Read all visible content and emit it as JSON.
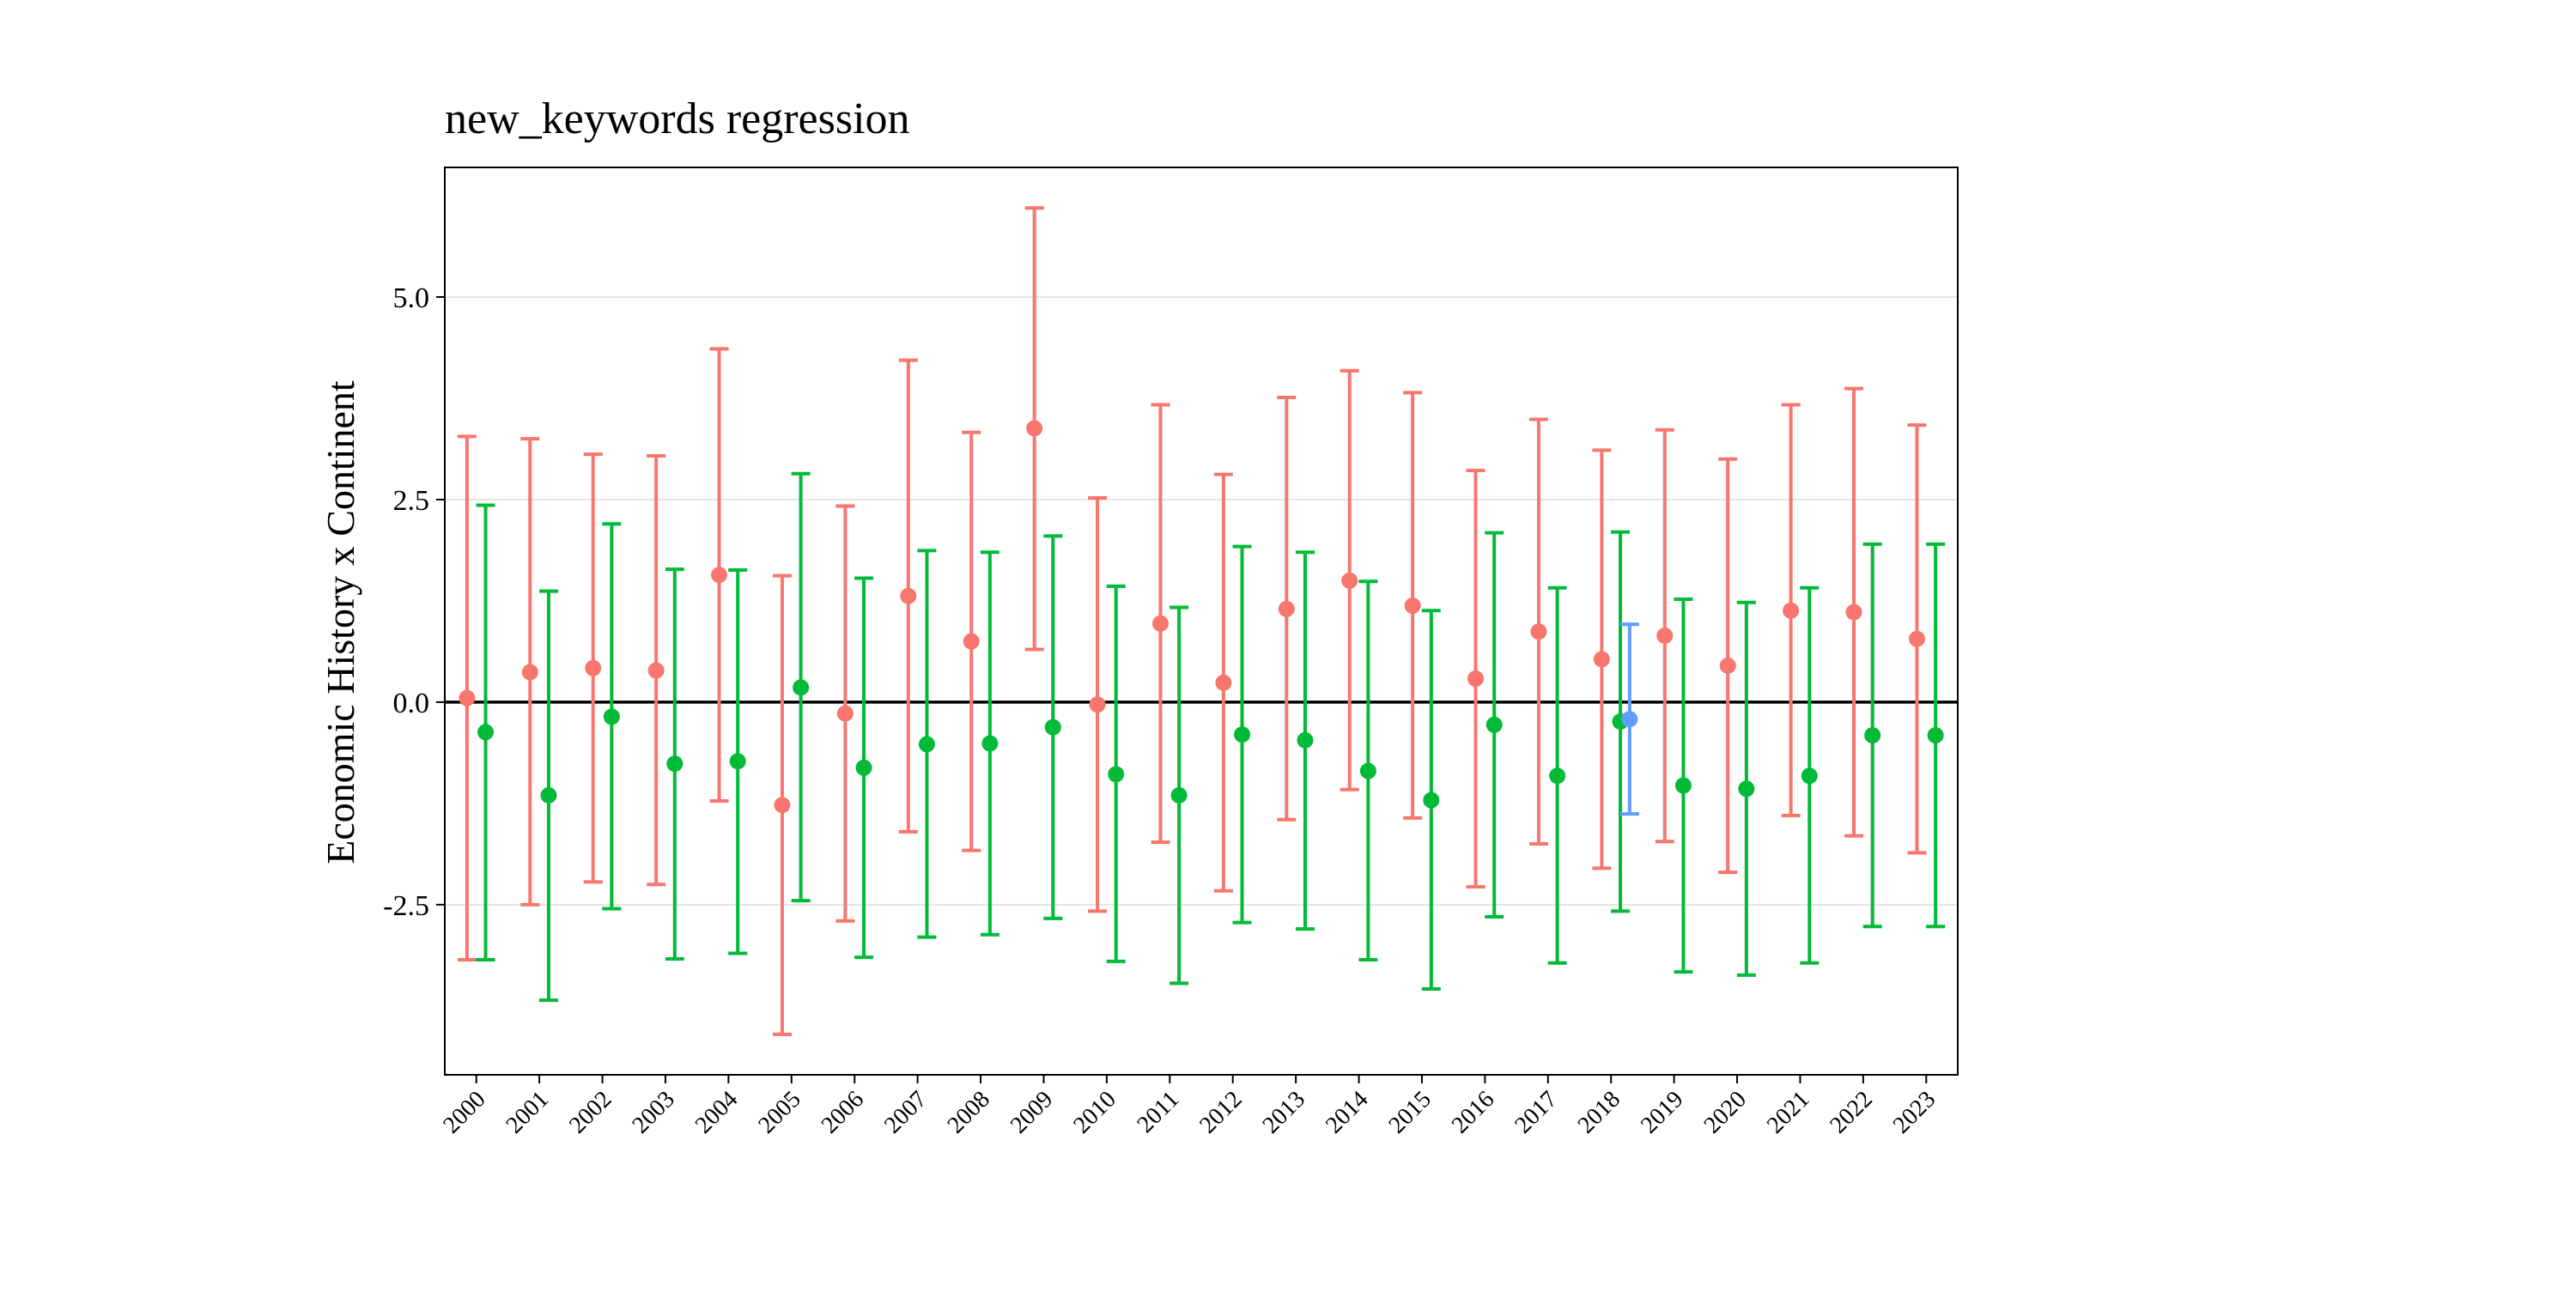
{
  "chart_data": {
    "type": "errorbar",
    "title": "new_keywords regression",
    "xlabel": "",
    "ylabel": "Economic History x Continent",
    "ylim": [
      -4.6,
      6.6
    ],
    "yticks": [
      -2.5,
      0.0,
      2.5,
      5.0
    ],
    "ytick_labels": [
      "-2.5",
      "0.0",
      "2.5",
      "5.0"
    ],
    "hline": 0,
    "grid": "horizontal major",
    "legend": "none",
    "categories": [
      "2000",
      "2001",
      "2002",
      "2003",
      "2004",
      "2005",
      "2006",
      "2007",
      "2008",
      "2009",
      "2010",
      "2011",
      "2012",
      "2013",
      "2014",
      "2015",
      "2016",
      "2017",
      "2018",
      "2019",
      "2020",
      "2021",
      "2022",
      "2023"
    ],
    "series": [
      {
        "color": "#F8766D",
        "offset": -0.25,
        "points": [
          {
            "x": "2000",
            "y": 0.05,
            "lo": -3.18,
            "hi": 3.28
          },
          {
            "x": "2001",
            "y": 0.37,
            "lo": -2.5,
            "hi": 3.25
          },
          {
            "x": "2002",
            "y": 0.42,
            "lo": -2.22,
            "hi": 3.06
          },
          {
            "x": "2003",
            "y": 0.39,
            "lo": -2.25,
            "hi": 3.04
          },
          {
            "x": "2004",
            "y": 1.57,
            "lo": -1.22,
            "hi": 4.36
          },
          {
            "x": "2005",
            "y": -1.27,
            "lo": -4.1,
            "hi": 1.56
          },
          {
            "x": "2006",
            "y": -0.14,
            "lo": -2.7,
            "hi": 2.42
          },
          {
            "x": "2007",
            "y": 1.31,
            "lo": -1.6,
            "hi": 4.22
          },
          {
            "x": "2008",
            "y": 0.75,
            "lo": -1.83,
            "hi": 3.33
          },
          {
            "x": "2009",
            "y": 3.38,
            "lo": 0.65,
            "hi": 6.1
          },
          {
            "x": "2010",
            "y": -0.03,
            "lo": -2.58,
            "hi": 2.52
          },
          {
            "x": "2011",
            "y": 0.97,
            "lo": -1.73,
            "hi": 3.67
          },
          {
            "x": "2012",
            "y": 0.24,
            "lo": -2.33,
            "hi": 2.81
          },
          {
            "x": "2013",
            "y": 1.15,
            "lo": -1.45,
            "hi": 3.76
          },
          {
            "x": "2014",
            "y": 1.5,
            "lo": -1.08,
            "hi": 4.09
          },
          {
            "x": "2015",
            "y": 1.19,
            "lo": -1.43,
            "hi": 3.82
          },
          {
            "x": "2016",
            "y": 0.29,
            "lo": -2.28,
            "hi": 2.86
          },
          {
            "x": "2017",
            "y": 0.87,
            "lo": -1.75,
            "hi": 3.49
          },
          {
            "x": "2018",
            "y": 0.53,
            "lo": -2.05,
            "hi": 3.11
          },
          {
            "x": "2019",
            "y": 0.82,
            "lo": -1.72,
            "hi": 3.36
          },
          {
            "x": "2020",
            "y": 0.45,
            "lo": -2.1,
            "hi": 3.0
          },
          {
            "x": "2021",
            "y": 1.13,
            "lo": -1.4,
            "hi": 3.67
          },
          {
            "x": "2022",
            "y": 1.11,
            "lo": -1.65,
            "hi": 3.87
          },
          {
            "x": "2023",
            "y": 0.78,
            "lo": -1.86,
            "hi": 3.42
          }
        ]
      },
      {
        "color": "#00BA38",
        "offset": 0.25,
        "points": [
          {
            "x": "2000",
            "y": -0.37,
            "lo": -3.18,
            "hi": 2.43
          },
          {
            "x": "2001",
            "y": -1.15,
            "lo": -3.68,
            "hi": 1.37
          },
          {
            "x": "2002",
            "y": -0.18,
            "lo": -2.55,
            "hi": 2.2
          },
          {
            "x": "2003",
            "y": -0.76,
            "lo": -3.17,
            "hi": 1.64
          },
          {
            "x": "2004",
            "y": -0.73,
            "lo": -3.1,
            "hi": 1.63
          },
          {
            "x": "2005",
            "y": 0.18,
            "lo": -2.45,
            "hi": 2.82
          },
          {
            "x": "2006",
            "y": -0.81,
            "lo": -3.15,
            "hi": 1.53
          },
          {
            "x": "2007",
            "y": -0.52,
            "lo": -2.9,
            "hi": 1.87
          },
          {
            "x": "2008",
            "y": -0.51,
            "lo": -2.87,
            "hi": 1.85
          },
          {
            "x": "2009",
            "y": -0.31,
            "lo": -2.67,
            "hi": 2.05
          },
          {
            "x": "2010",
            "y": -0.89,
            "lo": -3.2,
            "hi": 1.43
          },
          {
            "x": "2011",
            "y": -1.15,
            "lo": -3.47,
            "hi": 1.17
          },
          {
            "x": "2012",
            "y": -0.4,
            "lo": -2.72,
            "hi": 1.92
          },
          {
            "x": "2013",
            "y": -0.47,
            "lo": -2.8,
            "hi": 1.85
          },
          {
            "x": "2014",
            "y": -0.85,
            "lo": -3.18,
            "hi": 1.49
          },
          {
            "x": "2015",
            "y": -1.21,
            "lo": -3.54,
            "hi": 1.13
          },
          {
            "x": "2016",
            "y": -0.28,
            "lo": -2.65,
            "hi": 2.09
          },
          {
            "x": "2017",
            "y": -0.91,
            "lo": -3.22,
            "hi": 1.41
          },
          {
            "x": "2018",
            "y": -0.24,
            "lo": -2.58,
            "hi": 2.1
          },
          {
            "x": "2019",
            "y": -1.03,
            "lo": -3.33,
            "hi": 1.27
          },
          {
            "x": "2020",
            "y": -1.07,
            "lo": -3.37,
            "hi": 1.23
          },
          {
            "x": "2021",
            "y": -0.91,
            "lo": -3.22,
            "hi": 1.41
          },
          {
            "x": "2022",
            "y": -0.41,
            "lo": -2.77,
            "hi": 1.95
          },
          {
            "x": "2023",
            "y": -0.41,
            "lo": -2.77,
            "hi": 1.95
          }
        ]
      },
      {
        "color": "#619CFF",
        "offset": 0.5,
        "points": [
          {
            "x": "2018",
            "y": -0.21,
            "lo": -1.38,
            "hi": 0.96
          }
        ]
      }
    ]
  }
}
